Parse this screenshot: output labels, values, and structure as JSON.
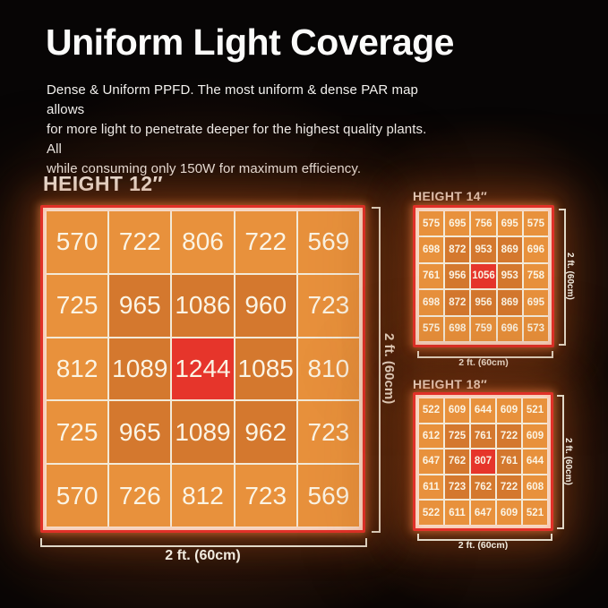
{
  "header": {
    "title": "Uniform Light Coverage",
    "subtitle": "Dense & Uniform PPFD. The most uniform & dense PAR map allows\nfor more light to penetrate deeper for the highest quality plants.  All\nwhile consuming only 150W for maximum efficiency."
  },
  "colors": {
    "background": "#070505",
    "cell_low": "#E8913C",
    "cell_mid": "#D4782E",
    "cell_peak": "#E6352B",
    "frame_red": "#E03028",
    "divider": "#F3EAD8",
    "cell_text": "#FBF4E4",
    "bracket": "#EFE8D8"
  },
  "chart_data": [
    {
      "type": "heatmap",
      "title": "HEIGHT 12″",
      "width_label": "2 ft. (60cm)",
      "height_label": "2 ft. (60cm)",
      "rows": 5,
      "cols": 5,
      "values": [
        [
          570,
          722,
          806,
          722,
          569
        ],
        [
          725,
          965,
          1086,
          960,
          723
        ],
        [
          812,
          1089,
          1244,
          1085,
          810
        ],
        [
          725,
          965,
          1089,
          962,
          723
        ],
        [
          570,
          726,
          812,
          723,
          569
        ]
      ],
      "max_value": 1244
    },
    {
      "type": "heatmap",
      "title": "HEIGHT 14″",
      "width_label": "2 ft. (60cm)",
      "height_label": "2 ft. (60cm)",
      "rows": 5,
      "cols": 5,
      "values": [
        [
          575,
          695,
          756,
          695,
          575
        ],
        [
          698,
          872,
          953,
          869,
          696
        ],
        [
          761,
          956,
          1056,
          953,
          758
        ],
        [
          698,
          872,
          956,
          869,
          695
        ],
        [
          575,
          698,
          759,
          696,
          573
        ]
      ],
      "max_value": 1056
    },
    {
      "type": "heatmap",
      "title": "HEIGHT 18″",
      "width_label": "2 ft. (60cm)",
      "height_label": "2 ft. (60cm)",
      "rows": 5,
      "cols": 5,
      "values": [
        [
          522,
          609,
          644,
          609,
          521
        ],
        [
          612,
          725,
          761,
          722,
          609
        ],
        [
          647,
          762,
          807,
          761,
          644
        ],
        [
          611,
          723,
          762,
          722,
          608
        ],
        [
          522,
          611,
          647,
          609,
          521
        ]
      ],
      "max_value": 807
    }
  ]
}
